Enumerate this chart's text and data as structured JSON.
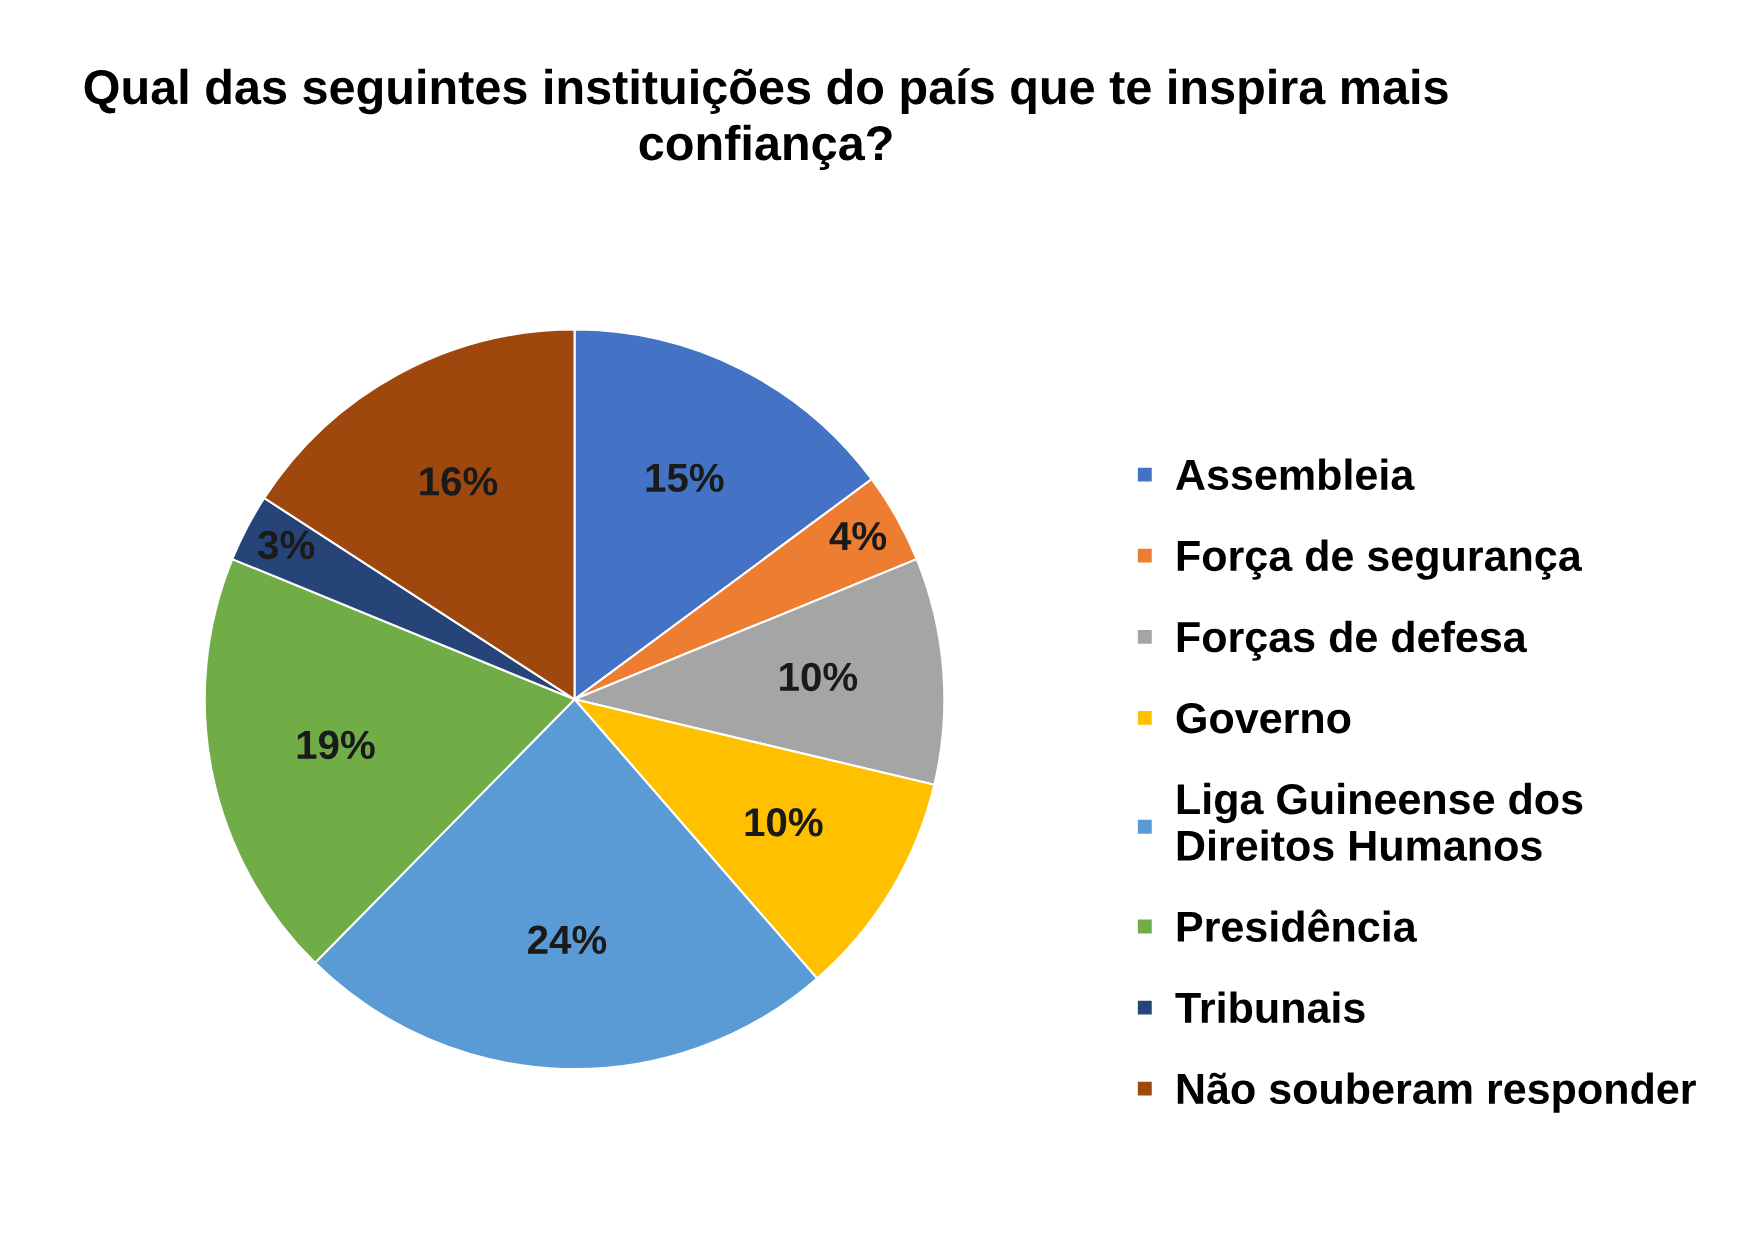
{
  "chart_data": {
    "type": "pie",
    "title": "Qual das seguintes instituições do país que te inspira mais confiança?",
    "categories": [
      "Assembleia",
      "Força de segurança",
      "Forças de defesa",
      "Governo",
      "Liga Guineense dos\nDireitos Humanos",
      "Presidência",
      "Tribunais",
      "Não souberam responder"
    ],
    "values": [
      15,
      4,
      10,
      10,
      24,
      19,
      3,
      16
    ],
    "value_labels": [
      "15%",
      "4%",
      "10%",
      "10%",
      "24%",
      "19%",
      "3%",
      "16%"
    ],
    "colors": [
      "#4472c4",
      "#ed7d31",
      "#a5a5a5",
      "#ffc000",
      "#5b9bd5",
      "#70ad47",
      "#264478",
      "#9e480e"
    ],
    "legend": "right"
  }
}
